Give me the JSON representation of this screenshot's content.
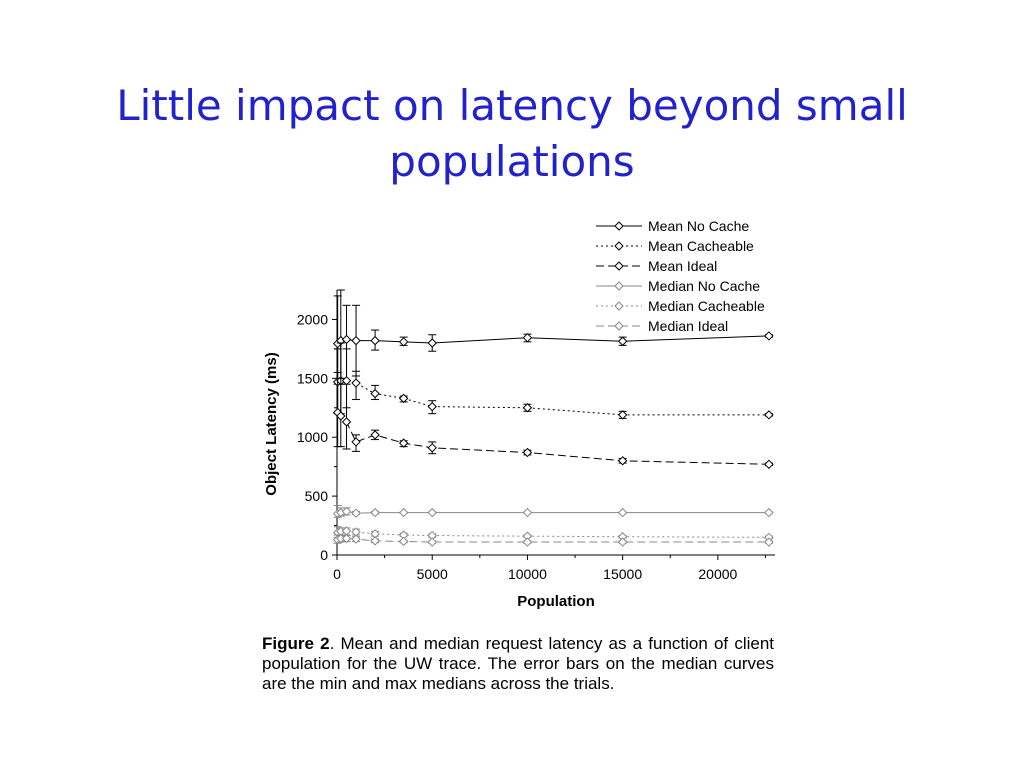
{
  "slide": {
    "title": "Little impact on latency beyond small populations"
  },
  "caption": {
    "label": "Figure 2",
    "text": ". Mean and median request latency as a function of client population for the UW trace.  The error bars on the median curves are the min and max medians across the trials."
  },
  "chart_data": {
    "type": "line",
    "xlabel": "Population",
    "ylabel": "Object Latency (ms)",
    "xlim": [
      0,
      23000
    ],
    "ylim": [
      0,
      2250
    ],
    "xticks": [
      0,
      5000,
      10000,
      15000,
      20000
    ],
    "yticks": [
      0,
      500,
      1000,
      1500,
      2000
    ],
    "legend_position": "top-right",
    "series": [
      {
        "name": "Mean No Cache",
        "dash": "solid",
        "color": "#000000",
        "x": [
          34,
          200,
          500,
          1000,
          2000,
          3500,
          5000,
          10000,
          15000,
          22680
        ],
        "y": [
          1795,
          1820,
          1830,
          1820,
          1820,
          1810,
          1800,
          1845,
          1815,
          1860
        ],
        "err_low": [
          1450,
          1450,
          1480,
          1520,
          1740,
          1780,
          1730,
          1810,
          1780,
          1850
        ],
        "err_high": [
          2200,
          2250,
          2120,
          2120,
          1910,
          1850,
          1870,
          1875,
          1850,
          1870
        ]
      },
      {
        "name": "Mean Cacheable",
        "dash": "dot",
        "color": "#000000",
        "x": [
          34,
          200,
          500,
          1000,
          2000,
          3500,
          5000,
          10000,
          15000,
          22680
        ],
        "y": [
          1470,
          1480,
          1480,
          1460,
          1370,
          1330,
          1260,
          1250,
          1190,
          1190
        ],
        "err_low": [
          1200,
          1200,
          1250,
          1320,
          1320,
          1300,
          1200,
          1220,
          1160,
          1180
        ],
        "err_high": [
          1750,
          1800,
          1750,
          1560,
          1440,
          1350,
          1310,
          1280,
          1220,
          1200
        ]
      },
      {
        "name": "Mean Ideal",
        "dash": "dash",
        "color": "#000000",
        "x": [
          34,
          200,
          500,
          1000,
          2000,
          3500,
          5000,
          10000,
          15000,
          22680
        ],
        "y": [
          1210,
          1180,
          1130,
          960,
          1020,
          950,
          910,
          870,
          800,
          770
        ],
        "err_low": [
          920,
          920,
          900,
          880,
          980,
          920,
          860,
          850,
          780,
          760
        ],
        "err_high": [
          1550,
          1500,
          1450,
          1020,
          1060,
          970,
          960,
          890,
          820,
          780
        ]
      },
      {
        "name": "Median No Cache",
        "dash": "solid",
        "color": "#888888",
        "x": [
          34,
          200,
          500,
          1000,
          2000,
          3500,
          5000,
          10000,
          15000,
          22680
        ],
        "y": [
          350,
          360,
          370,
          355,
          360,
          360,
          360,
          360,
          360,
          360
        ],
        "err_low": [
          320,
          330,
          340,
          345,
          350,
          355,
          355,
          355,
          355,
          355
        ],
        "err_high": [
          420,
          400,
          400,
          370,
          370,
          365,
          365,
          365,
          365,
          365
        ]
      },
      {
        "name": "Median Cacheable",
        "dash": "dot",
        "color": "#888888",
        "x": [
          34,
          200,
          500,
          1000,
          2000,
          3500,
          5000,
          10000,
          15000,
          22680
        ],
        "y": [
          190,
          200,
          205,
          195,
          180,
          170,
          165,
          160,
          155,
          150
        ],
        "err_low": [
          150,
          160,
          170,
          170,
          160,
          160,
          150,
          150,
          145,
          140
        ],
        "err_high": [
          240,
          230,
          230,
          220,
          200,
          185,
          180,
          170,
          165,
          160
        ]
      },
      {
        "name": "Median Ideal",
        "dash": "dash",
        "color": "#888888",
        "x": [
          34,
          200,
          500,
          1000,
          2000,
          3500,
          5000,
          10000,
          15000,
          22680
        ],
        "y": [
          130,
          140,
          140,
          135,
          120,
          115,
          110,
          110,
          110,
          110
        ],
        "err_low": [
          100,
          110,
          115,
          115,
          105,
          105,
          100,
          100,
          100,
          100
        ],
        "err_high": [
          170,
          170,
          165,
          155,
          135,
          125,
          120,
          120,
          120,
          120
        ]
      }
    ]
  }
}
